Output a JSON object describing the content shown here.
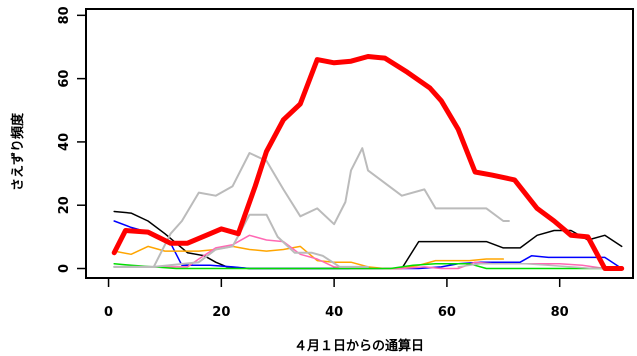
{
  "chart_data": {
    "type": "line",
    "xlabel": "４月１日からの通算日",
    "ylabel": "さえずり頻度",
    "xlim": [
      -4,
      93
    ],
    "ylim": [
      -3,
      82
    ],
    "x_ticks": [
      0,
      20,
      40,
      60,
      80
    ],
    "y_ticks": [
      0,
      20,
      40,
      60,
      80
    ],
    "grid": false,
    "legend": "none",
    "series": [
      {
        "color": "#ff0000",
        "width": 5,
        "points": [
          [
            1,
            5
          ],
          [
            3,
            12
          ],
          [
            7,
            11.5
          ],
          [
            11,
            8
          ],
          [
            14,
            8
          ],
          [
            18,
            11
          ],
          [
            20,
            12.5
          ],
          [
            23,
            11
          ],
          [
            26,
            26
          ],
          [
            28,
            37
          ],
          [
            31,
            47
          ],
          [
            34,
            52
          ],
          [
            37,
            66
          ],
          [
            40,
            65
          ],
          [
            43,
            65.5
          ],
          [
            46,
            67
          ],
          [
            49,
            66.5
          ],
          [
            53,
            62
          ],
          [
            57,
            57
          ],
          [
            59,
            53
          ],
          [
            62,
            44
          ],
          [
            65,
            30.5
          ],
          [
            68,
            29.5
          ],
          [
            72,
            28
          ],
          [
            76,
            19
          ],
          [
            79,
            15
          ],
          [
            82,
            10.5
          ],
          [
            85,
            10
          ],
          [
            88,
            0
          ],
          [
            91,
            0
          ]
        ]
      },
      {
        "color": "#bbbbbb",
        "width": 2,
        "points": [
          [
            1,
            0.5
          ],
          [
            4,
            0.5
          ],
          [
            8,
            0.5
          ],
          [
            11,
            11
          ],
          [
            13,
            15
          ],
          [
            16,
            24
          ],
          [
            19,
            23
          ],
          [
            22,
            26
          ],
          [
            25,
            36.5
          ],
          [
            28,
            34
          ],
          [
            31,
            25
          ],
          [
            34,
            16.5
          ],
          [
            37,
            19
          ],
          [
            40,
            14
          ],
          [
            42,
            21
          ],
          [
            43,
            31
          ],
          [
            45,
            38
          ],
          [
            46,
            31
          ],
          [
            49,
            27
          ],
          [
            52,
            23
          ],
          [
            56,
            25
          ],
          [
            58,
            19
          ],
          [
            61,
            19
          ],
          [
            64,
            19
          ],
          [
            67,
            19
          ],
          [
            70,
            15
          ],
          [
            71,
            15
          ]
        ]
      },
      {
        "color": "#bbbbbb",
        "width": 2,
        "points": [
          [
            1,
            0.5
          ],
          [
            8,
            0.5
          ],
          [
            16,
            2
          ],
          [
            19,
            6
          ],
          [
            22,
            7
          ],
          [
            25,
            17
          ],
          [
            28,
            17
          ],
          [
            30,
            10
          ],
          [
            33,
            5
          ],
          [
            36,
            5
          ],
          [
            38,
            4
          ],
          [
            41,
            0.5
          ],
          [
            46,
            0.5
          ]
        ]
      },
      {
        "color": "#000000",
        "width": 1.5,
        "points": [
          [
            1,
            18
          ],
          [
            4,
            17.5
          ],
          [
            7,
            15
          ],
          [
            10,
            11
          ],
          [
            12,
            8
          ],
          [
            14,
            5
          ],
          [
            17,
            4
          ],
          [
            19,
            2
          ],
          [
            21,
            0.5
          ],
          [
            25,
            0
          ],
          [
            52,
            0
          ],
          [
            55,
            8.5
          ],
          [
            59,
            8.5
          ],
          [
            63,
            8.5
          ],
          [
            67,
            8.5
          ],
          [
            70,
            6.5
          ],
          [
            73,
            6.5
          ],
          [
            76,
            10.5
          ],
          [
            79,
            12
          ],
          [
            82,
            12
          ],
          [
            85,
            9
          ],
          [
            88,
            10.5
          ],
          [
            91,
            7
          ]
        ]
      },
      {
        "color": "#0000ff",
        "width": 1.5,
        "points": [
          [
            1,
            15
          ],
          [
            4,
            13
          ],
          [
            8,
            11
          ],
          [
            11,
            8
          ],
          [
            13,
            1
          ],
          [
            18,
            1
          ],
          [
            22,
            0.5
          ],
          [
            25,
            0
          ],
          [
            55,
            0
          ],
          [
            59,
            0.5
          ],
          [
            62,
            1.5
          ],
          [
            66,
            2
          ],
          [
            73,
            2
          ],
          [
            75,
            4
          ],
          [
            78,
            3.5
          ],
          [
            82,
            3.5
          ],
          [
            85,
            3.5
          ],
          [
            88,
            3.5
          ],
          [
            91,
            0
          ]
        ]
      },
      {
        "color": "#ffa500",
        "width": 1.5,
        "points": [
          [
            1,
            5.5
          ],
          [
            4,
            4.5
          ],
          [
            7,
            7
          ],
          [
            10,
            5.5
          ],
          [
            13,
            5.5
          ],
          [
            16,
            5.5
          ],
          [
            19,
            6
          ],
          [
            22,
            7
          ],
          [
            25,
            6
          ],
          [
            28,
            5.5
          ],
          [
            31,
            6
          ],
          [
            34,
            7
          ],
          [
            37,
            2.5
          ],
          [
            40,
            2
          ],
          [
            43,
            2
          ],
          [
            46,
            0.5
          ],
          [
            49,
            0
          ],
          [
            52,
            0
          ],
          [
            55,
            1
          ],
          [
            58,
            2.5
          ],
          [
            61,
            2.5
          ],
          [
            64,
            2.5
          ],
          [
            67,
            3
          ],
          [
            70,
            3
          ]
        ]
      },
      {
        "color": "#ff69b4",
        "width": 1.5,
        "points": [
          [
            1,
            0.5
          ],
          [
            4,
            0.5
          ],
          [
            8,
            0.5
          ],
          [
            11,
            0.5
          ],
          [
            14,
            0.5
          ],
          [
            16,
            3
          ],
          [
            19,
            6.5
          ],
          [
            22,
            7.5
          ],
          [
            25,
            10.5
          ],
          [
            28,
            9
          ],
          [
            31,
            8.5
          ],
          [
            34,
            4.5
          ],
          [
            37,
            3
          ],
          [
            40,
            0.5
          ],
          [
            43,
            0
          ],
          [
            52,
            0
          ],
          [
            56,
            0.5
          ],
          [
            59,
            0
          ],
          [
            62,
            0
          ],
          [
            65,
            2
          ],
          [
            68,
            1.5
          ],
          [
            72,
            1.5
          ],
          [
            76,
            1.5
          ],
          [
            80,
            1.5
          ],
          [
            84,
            1
          ],
          [
            88,
            0
          ],
          [
            91,
            0
          ]
        ]
      },
      {
        "color": "#00dd00",
        "width": 1.5,
        "points": [
          [
            1,
            1.5
          ],
          [
            4,
            1
          ],
          [
            8,
            0.5
          ],
          [
            12,
            0
          ],
          [
            20,
            0
          ],
          [
            25,
            0
          ],
          [
            50,
            0
          ],
          [
            54,
            1
          ],
          [
            58,
            1.5
          ],
          [
            61,
            1.5
          ],
          [
            64,
            1.5
          ],
          [
            67,
            0
          ],
          [
            70,
            0
          ],
          [
            91,
            0
          ]
        ]
      },
      {
        "color": "#bbbbbb",
        "width": 1.5,
        "points": [
          [
            62,
            0.5
          ],
          [
            66,
            1.5
          ],
          [
            70,
            1.5
          ],
          [
            74,
            1.5
          ],
          [
            78,
            1
          ],
          [
            82,
            0.5
          ],
          [
            86,
            0
          ],
          [
            91,
            0
          ]
        ]
      }
    ]
  }
}
